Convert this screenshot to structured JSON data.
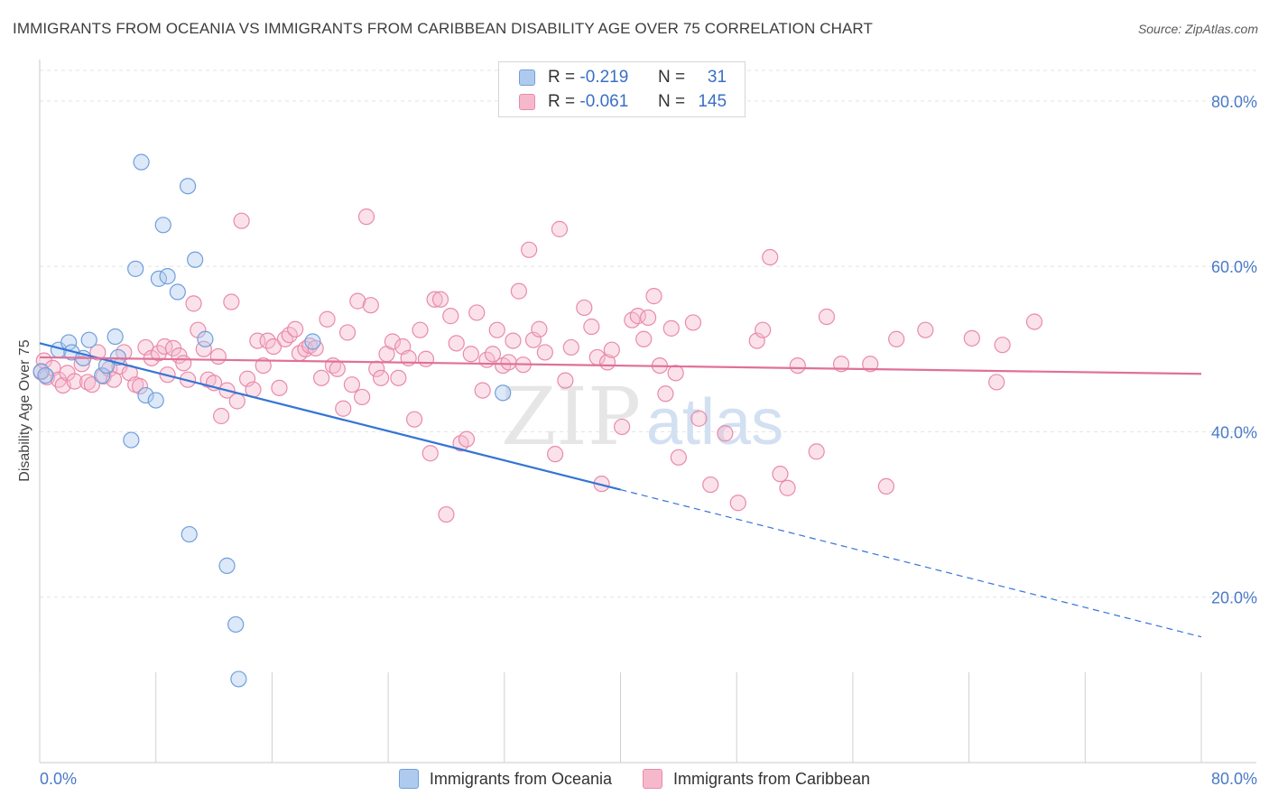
{
  "header": {
    "title": "IMMIGRANTS FROM OCEANIA VS IMMIGRANTS FROM CARIBBEAN DISABILITY AGE OVER 75 CORRELATION CHART",
    "source": "Source: ZipAtlas.com"
  },
  "legend": {
    "rows": [
      {
        "r_label": "R =",
        "r_value": "-0.219",
        "n_label": "N =",
        "n_value": "31"
      },
      {
        "r_label": "R =",
        "r_value": "-0.061",
        "n_label": "N =",
        "n_value": "145"
      }
    ]
  },
  "watermark": {
    "zip": "ZIP",
    "atlas": "atlas"
  },
  "colors": {
    "oceania_fill": "#aecbef",
    "oceania_stroke": "#6f9fdc",
    "oceania_line": "#3375d6",
    "caribbean_fill": "#f6b9cc",
    "caribbean_stroke": "#e98aab",
    "caribbean_line": "#e0709a",
    "tick_label": "#4a7ac8",
    "grid": "#e3e3e3"
  },
  "chart_data": {
    "type": "scatter",
    "title": "IMMIGRANTS FROM OCEANIA VS IMMIGRANTS FROM CARIBBEAN DISABILITY AGE OVER 75 CORRELATION CHART",
    "xlabel": "",
    "ylabel": "Disability Age Over 75",
    "xlim": [
      0,
      80
    ],
    "ylim": [
      0,
      85
    ],
    "x_tick_labels": [
      "0.0%",
      "80.0%"
    ],
    "y_ticks": [
      20,
      40,
      60,
      80
    ],
    "y_tick_labels": [
      "20.0%",
      "40.0%",
      "60.0%",
      "80.0%"
    ],
    "grid": true,
    "legend_position": "top-center",
    "series": [
      {
        "name": "Immigrants from Oceania",
        "r": -0.219,
        "n": 31,
        "trend": {
          "x0": 0,
          "y0": 50.7,
          "x1": 40,
          "y1": 33.0,
          "dashed_to": 80,
          "dashed_y": 15.2
        },
        "points": [
          [
            0.1,
            47.3
          ],
          [
            0.4,
            46.8
          ],
          [
            1.3,
            49.9
          ],
          [
            2.0,
            50.8
          ],
          [
            2.2,
            49.6
          ],
          [
            3.0,
            48.9
          ],
          [
            3.4,
            51.1
          ],
          [
            4.3,
            46.8
          ],
          [
            4.6,
            48.0
          ],
          [
            5.2,
            51.5
          ],
          [
            5.4,
            49.0
          ],
          [
            6.3,
            39.0
          ],
          [
            6.6,
            59.7
          ],
          [
            7.0,
            72.6
          ],
          [
            7.3,
            44.4
          ],
          [
            8.0,
            43.8
          ],
          [
            8.2,
            58.5
          ],
          [
            8.5,
            65.0
          ],
          [
            8.8,
            58.8
          ],
          [
            9.5,
            56.9
          ],
          [
            10.2,
            69.7
          ],
          [
            10.3,
            27.6
          ],
          [
            10.7,
            60.8
          ],
          [
            11.4,
            51.2
          ],
          [
            12.9,
            23.8
          ],
          [
            13.5,
            16.7
          ],
          [
            13.7,
            10.1
          ],
          [
            18.8,
            50.9
          ],
          [
            31.9,
            44.7
          ]
        ]
      },
      {
        "name": "Immigrants from Caribbean",
        "r": -0.061,
        "n": 145,
        "trend": {
          "x0": 0,
          "y0": 49.0,
          "x1": 80,
          "y1": 47.0
        },
        "points": [
          [
            0.1,
            47.2
          ],
          [
            0.3,
            48.6
          ],
          [
            0.5,
            46.6
          ],
          [
            0.9,
            47.7
          ],
          [
            1.3,
            46.3
          ],
          [
            1.6,
            45.6
          ],
          [
            1.9,
            47.1
          ],
          [
            2.4,
            46.1
          ],
          [
            2.9,
            48.2
          ],
          [
            3.3,
            46.0
          ],
          [
            3.6,
            45.7
          ],
          [
            4.0,
            49.6
          ],
          [
            4.4,
            46.7
          ],
          [
            4.8,
            47.6
          ],
          [
            5.1,
            46.3
          ],
          [
            5.5,
            47.9
          ],
          [
            5.8,
            49.6
          ],
          [
            6.2,
            47.1
          ],
          [
            6.6,
            45.7
          ],
          [
            6.9,
            45.5
          ],
          [
            7.3,
            50.2
          ],
          [
            7.7,
            48.9
          ],
          [
            8.2,
            49.5
          ],
          [
            8.6,
            50.3
          ],
          [
            8.8,
            46.9
          ],
          [
            9.2,
            50.1
          ],
          [
            9.6,
            49.2
          ],
          [
            9.9,
            48.3
          ],
          [
            10.2,
            46.3
          ],
          [
            10.6,
            55.5
          ],
          [
            10.9,
            52.3
          ],
          [
            11.3,
            50.0
          ],
          [
            11.6,
            46.3
          ],
          [
            12.0,
            45.9
          ],
          [
            12.3,
            49.1
          ],
          [
            12.5,
            41.9
          ],
          [
            12.9,
            45.0
          ],
          [
            13.2,
            55.7
          ],
          [
            13.6,
            43.7
          ],
          [
            13.9,
            65.5
          ],
          [
            14.3,
            46.4
          ],
          [
            14.7,
            45.1
          ],
          [
            15.0,
            51.0
          ],
          [
            15.4,
            48.0
          ],
          [
            15.7,
            51.0
          ],
          [
            16.1,
            50.3
          ],
          [
            16.5,
            45.3
          ],
          [
            16.9,
            51.2
          ],
          [
            17.2,
            51.7
          ],
          [
            17.6,
            52.4
          ],
          [
            17.9,
            49.5
          ],
          [
            18.3,
            50.0
          ],
          [
            18.6,
            50.4
          ],
          [
            19.0,
            50.1
          ],
          [
            19.4,
            46.5
          ],
          [
            19.8,
            53.6
          ],
          [
            20.2,
            48.0
          ],
          [
            20.5,
            47.6
          ],
          [
            20.9,
            42.8
          ],
          [
            21.2,
            52.0
          ],
          [
            21.5,
            45.7
          ],
          [
            21.9,
            55.8
          ],
          [
            22.2,
            44.2
          ],
          [
            22.5,
            66.0
          ],
          [
            22.8,
            55.3
          ],
          [
            23.2,
            47.6
          ],
          [
            23.5,
            46.5
          ],
          [
            23.9,
            49.4
          ],
          [
            24.3,
            50.9
          ],
          [
            24.7,
            46.5
          ],
          [
            25.0,
            50.3
          ],
          [
            25.4,
            48.9
          ],
          [
            25.8,
            41.5
          ],
          [
            26.2,
            52.3
          ],
          [
            26.6,
            48.8
          ],
          [
            26.9,
            37.4
          ],
          [
            27.2,
            56.0
          ],
          [
            27.6,
            56.0
          ],
          [
            28.0,
            30.0
          ],
          [
            28.3,
            54.0
          ],
          [
            28.7,
            50.7
          ],
          [
            29.0,
            38.6
          ],
          [
            29.4,
            39.1
          ],
          [
            29.7,
            49.4
          ],
          [
            30.1,
            54.4
          ],
          [
            30.5,
            45.0
          ],
          [
            30.8,
            48.7
          ],
          [
            31.2,
            49.4
          ],
          [
            31.5,
            52.3
          ],
          [
            31.9,
            48.0
          ],
          [
            32.3,
            48.4
          ],
          [
            32.6,
            51.0
          ],
          [
            33.0,
            57.0
          ],
          [
            33.3,
            48.1
          ],
          [
            33.7,
            62.0
          ],
          [
            34.0,
            51.1
          ],
          [
            34.4,
            52.4
          ],
          [
            34.8,
            49.6
          ],
          [
            35.5,
            37.3
          ],
          [
            35.8,
            64.5
          ],
          [
            36.2,
            46.2
          ],
          [
            36.6,
            50.2
          ],
          [
            37.5,
            55.0
          ],
          [
            38.0,
            52.7
          ],
          [
            38.4,
            49.0
          ],
          [
            38.7,
            33.7
          ],
          [
            39.1,
            48.4
          ],
          [
            39.4,
            49.9
          ],
          [
            40.1,
            40.6
          ],
          [
            40.8,
            53.5
          ],
          [
            41.2,
            54.0
          ],
          [
            41.6,
            51.2
          ],
          [
            41.9,
            53.8
          ],
          [
            42.3,
            56.4
          ],
          [
            42.7,
            48.0
          ],
          [
            43.1,
            44.6
          ],
          [
            43.5,
            52.5
          ],
          [
            43.8,
            47.1
          ],
          [
            44.0,
            36.9
          ],
          [
            45.0,
            53.2
          ],
          [
            45.4,
            41.6
          ],
          [
            46.2,
            33.6
          ],
          [
            47.2,
            39.8
          ],
          [
            48.1,
            31.4
          ],
          [
            49.4,
            51.0
          ],
          [
            49.8,
            52.3
          ],
          [
            50.3,
            61.1
          ],
          [
            51.0,
            34.9
          ],
          [
            51.5,
            33.2
          ],
          [
            52.2,
            48.0
          ],
          [
            53.5,
            37.6
          ],
          [
            54.2,
            53.9
          ],
          [
            55.2,
            48.2
          ],
          [
            57.2,
            48.2
          ],
          [
            58.3,
            33.4
          ],
          [
            59.0,
            51.2
          ],
          [
            61.0,
            52.3
          ],
          [
            64.2,
            51.3
          ],
          [
            65.9,
            46.0
          ],
          [
            66.3,
            50.5
          ],
          [
            68.5,
            53.3
          ]
        ]
      }
    ]
  },
  "bottom_legend": {
    "items": [
      "Immigrants from Oceania",
      "Immigrants from Caribbean"
    ]
  }
}
